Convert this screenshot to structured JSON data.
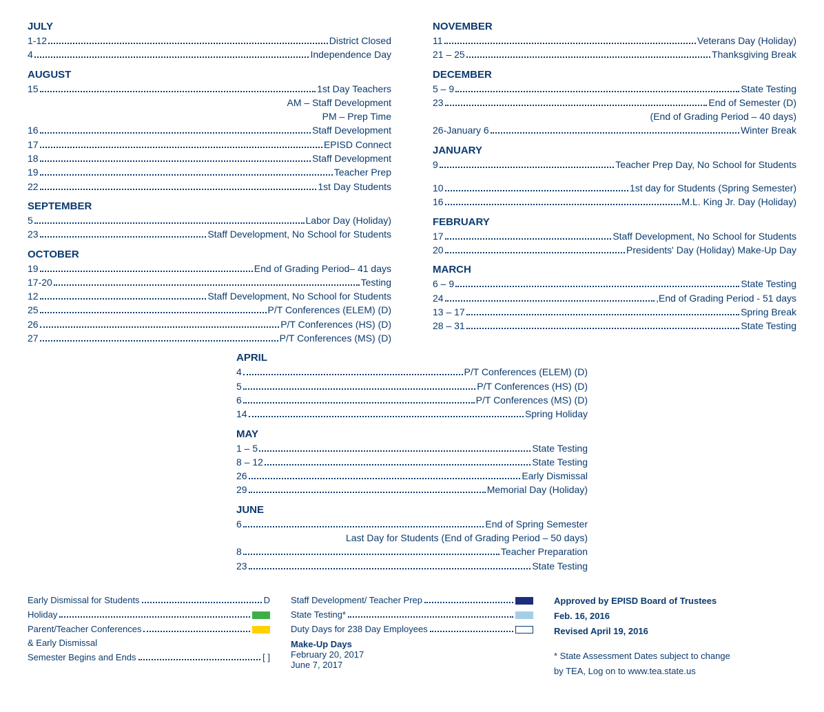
{
  "colors": {
    "text": "#0b3b6f",
    "green": "#3fae49",
    "yellow": "#ffd100",
    "darkblue": "#1b2e7a",
    "lightblue": "#a6cde5"
  },
  "left_months": [
    {
      "name": "JULY",
      "entries": [
        {
          "date": "1-12",
          "desc": "District Closed"
        },
        {
          "date": "4",
          "desc": "Independence Day"
        }
      ]
    },
    {
      "name": "AUGUST",
      "entries": [
        {
          "date": "15",
          "desc": "1st Day Teachers"
        },
        {
          "noline": true,
          "desc": "AM – Staff Development"
        },
        {
          "noline": true,
          "desc": "PM – Prep Time"
        },
        {
          "date": "16",
          "desc": "Staff  Development"
        },
        {
          "date": "17",
          "desc": "EPISD Connect"
        },
        {
          "date": "18",
          "desc": "Staff  Development"
        },
        {
          "date": "19",
          "desc": "Teacher Prep"
        },
        {
          "date": "22",
          "desc": "1st Day Students"
        }
      ]
    },
    {
      "name": "SEPTEMBER",
      "entries": [
        {
          "date": "5",
          "desc": "Labor Day (Holiday)"
        },
        {
          "date": "23",
          "desc": "Staff Development, No School for Students"
        }
      ]
    },
    {
      "name": "OCTOBER",
      "entries": [
        {
          "date": "19",
          "desc": "End of Grading Period– 41 days"
        },
        {
          "date": "17-20",
          "desc": "Testing"
        },
        {
          "date": "12",
          "desc": "Staff Development, No School for Students"
        },
        {
          "date": "25",
          "desc": "P/T Conferences (ELEM) (D)"
        },
        {
          "date": "26",
          "desc": "P/T Conferences (HS) (D)"
        },
        {
          "date": "27",
          "desc": "P/T Conferences  (MS)  (D)"
        }
      ]
    }
  ],
  "right_months": [
    {
      "name": "NOVEMBER",
      "entries": [
        {
          "date": "11",
          "desc": "Veterans Day (Holiday)"
        },
        {
          "date": "21 – 25",
          "desc": "Thanksgiving Break"
        }
      ]
    },
    {
      "name": "DECEMBER",
      "entries": [
        {
          "date": "5 – 9",
          "desc": "State Testing"
        },
        {
          "date": "23",
          "desc": "End of Semester (D)"
        },
        {
          "noline": true,
          "desc": "(End of Grading Period – 40 days)"
        },
        {
          "date": "26-January 6",
          "desc": "Winter Break"
        }
      ]
    },
    {
      "name": "JANUARY",
      "entries": [
        {
          "date": "9",
          "desc": "Teacher Prep Day, No School for Students"
        },
        {
          "spacer": true
        },
        {
          "date": "10",
          "desc": "1st day for Students (Spring Semester)"
        },
        {
          "date": "16",
          "desc": "M.L. King Jr. Day (Holiday)"
        }
      ]
    },
    {
      "name": "FEBRUARY",
      "entries": [
        {
          "date": "17",
          "desc": "Staff Development, No School for Students"
        },
        {
          "date": "20",
          "desc": "Presidents' Day (Holiday) Make-Up Day"
        }
      ]
    },
    {
      "name": "MARCH",
      "entries": [
        {
          "date": "6 – 9",
          "desc": "State Testing"
        },
        {
          "date": "24",
          "desc": ",End of Grading Period - 51 days"
        },
        {
          "date": "13 – 17",
          "desc": "Spring Break"
        },
        {
          "date": "28 – 31",
          "desc": "State Testing"
        }
      ]
    }
  ],
  "middle_months": [
    {
      "name": "APRIL",
      "entries": [
        {
          "date": "4",
          "desc": "P/T Conferences  (ELEM)  (D)"
        },
        {
          "date": "5",
          "desc": "P/T Conferences  (HS)  (D)"
        },
        {
          "date": "6",
          "desc": "P/T Conferences  (MS)  (D)"
        },
        {
          "date": "14",
          "desc": "Spring Holiday"
        }
      ]
    },
    {
      "name": "MAY",
      "entries": [
        {
          "date": "1 – 5",
          "desc": "State Testing"
        },
        {
          "date": "8 – 12",
          "desc": "State Testing"
        },
        {
          "date": "26",
          "desc": "Early Dismissal"
        },
        {
          "date": "29",
          "desc": "Memorial Day (Holiday)"
        }
      ]
    },
    {
      "name": "JUNE",
      "entries": [
        {
          "date": "6",
          "desc": "End of Spring Semester"
        },
        {
          "noline": true,
          "desc": "Last Day for Students (End of Grading Period – 50 days)"
        },
        {
          "date": "8",
          "desc": "Teacher Preparation"
        },
        {
          "date": "23",
          "desc": "State Testing"
        }
      ]
    }
  ],
  "legend_left": [
    {
      "label": "Early Dismissal for Students",
      "symbol_text": "D"
    },
    {
      "label": "Holiday",
      "swatch": "#3fae49"
    },
    {
      "label": "Parent/Teacher Conferences ",
      "swatch": "#ffd100"
    },
    {
      "plain": "& Early Dismissal"
    },
    {
      "label": "Semester Begins and Ends",
      "symbol_text": "[ ]"
    }
  ],
  "legend_mid": [
    {
      "label": "Staff Development/ Teacher Prep",
      "swatch": "#1b2e7a"
    },
    {
      "label": "State Testing*",
      "swatch": "#a6cde5"
    },
    {
      "label": "Duty Days for 238 Day Employees",
      "outline": true
    }
  ],
  "makeup": {
    "header": "Make-Up Days",
    "lines": [
      "February 20, 2017",
      "June 7, 2017"
    ]
  },
  "approval": {
    "l1": "Approved by EPISD Board of Trustees",
    "l2": "Feb. 16, 2016",
    "l3": "Revised April 19, 2016",
    "note1": "* State Assessment Dates subject to change",
    "note2": "by TEA, Log on to www.tea.state.us"
  }
}
